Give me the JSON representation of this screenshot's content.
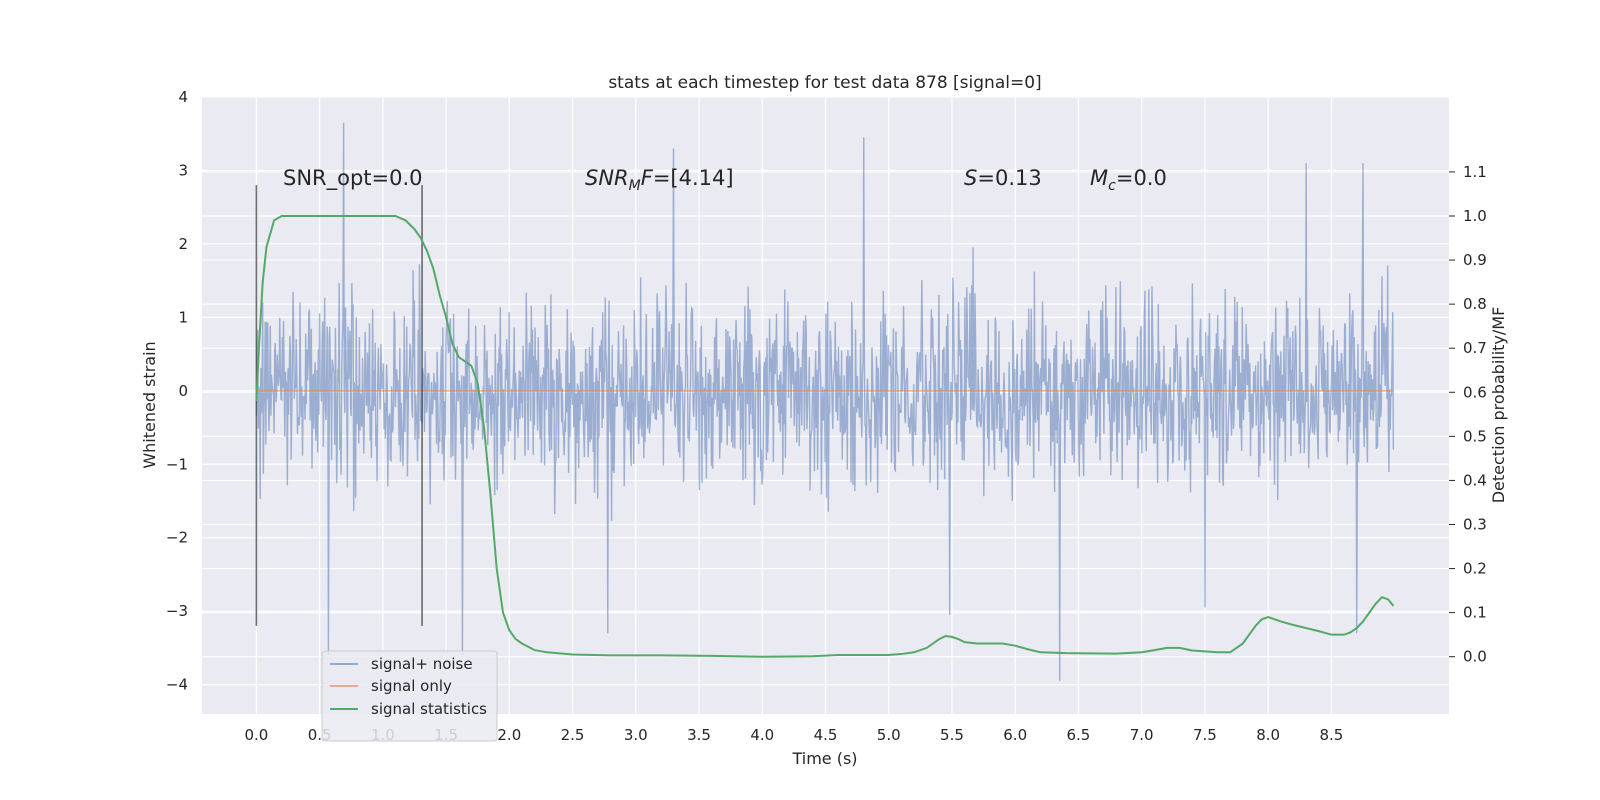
{
  "chart_data": {
    "type": "line",
    "title": "stats at each timestep for test data 878 [signal=0]",
    "xlabel": "Time (s)",
    "ylabel": "Whitened strain",
    "y2label": "Detection probability/MF",
    "xlim": [
      -0.43,
      9.43
    ],
    "ylim": [
      -4.4,
      4.0
    ],
    "y2lim": [
      -0.13,
      1.27
    ],
    "grid": true,
    "legend_position": "lower-left",
    "x_ticks": [
      "0.0",
      "0.5",
      "1.0",
      "1.5",
      "2.0",
      "2.5",
      "3.0",
      "3.5",
      "4.0",
      "4.5",
      "5.0",
      "5.5",
      "6.0",
      "6.5",
      "7.0",
      "7.5",
      "8.0",
      "8.5"
    ],
    "y_ticks": [
      "4",
      "3",
      "2",
      "1",
      "0",
      "−1",
      "−2",
      "−3",
      "−4"
    ],
    "y2_ticks": [
      "1.1",
      "1.0",
      "0.9",
      "0.8",
      "0.7",
      "0.6",
      "0.5",
      "0.4",
      "0.3",
      "0.2",
      "0.1",
      "0.0"
    ],
    "annotations": [
      {
        "label": "SNR_opt=",
        "value": "0.0"
      },
      {
        "label": "SNR",
        "sub": "M",
        "mid": "F=",
        "value": "[4.14]"
      },
      {
        "label": "S",
        "mid": "=",
        "value": "0.13"
      },
      {
        "label": "M",
        "sub": "c",
        "mid": "=",
        "value": "0.0"
      }
    ],
    "vlines": [
      0.0,
      1.31
    ],
    "series": [
      {
        "name": "signal+ noise",
        "color": "#4c72b0",
        "x_range": [
          0.0,
          8.99
        ],
        "n_points": 1800,
        "envelope": {
          "typical_abs": 1.4,
          "max": 3.65,
          "min": -3.95
        },
        "peaks": [
          [
            0.69,
            3.65
          ],
          [
            4.8,
            3.45
          ],
          [
            3.3,
            3.3
          ],
          [
            8.3,
            3.1
          ],
          [
            8.75,
            3.1
          ],
          [
            6.35,
            -3.95
          ],
          [
            0.57,
            -3.6
          ],
          [
            1.63,
            -3.6
          ],
          [
            2.78,
            -3.3
          ],
          [
            8.7,
            -3.3
          ],
          [
            5.48,
            -3.05
          ],
          [
            7.5,
            -2.95
          ]
        ]
      },
      {
        "name": "signal only",
        "color": "#dd8452",
        "x": [
          0.0,
          8.99
        ],
        "y": [
          0.0,
          0.0
        ]
      },
      {
        "name": "signal statistics",
        "color": "#55a868",
        "axis": "right",
        "x": [
          0.0,
          0.02,
          0.05,
          0.08,
          0.14,
          0.2,
          0.3,
          0.5,
          0.7,
          0.9,
          1.1,
          1.18,
          1.25,
          1.3,
          1.35,
          1.4,
          1.45,
          1.5,
          1.55,
          1.6,
          1.65,
          1.7,
          1.75,
          1.8,
          1.85,
          1.9,
          1.95,
          2.0,
          2.05,
          2.1,
          2.2,
          2.3,
          2.5,
          2.8,
          3.2,
          3.6,
          4.0,
          4.4,
          4.6,
          4.8,
          5.0,
          5.1,
          5.2,
          5.3,
          5.4,
          5.45,
          5.5,
          5.55,
          5.6,
          5.7,
          5.8,
          5.9,
          6.0,
          6.1,
          6.2,
          6.4,
          6.8,
          7.0,
          7.1,
          7.2,
          7.3,
          7.4,
          7.6,
          7.7,
          7.8,
          7.85,
          7.9,
          7.95,
          8.0,
          8.1,
          8.2,
          8.3,
          8.4,
          8.5,
          8.6,
          8.65,
          8.7,
          8.75,
          8.8,
          8.85,
          8.9,
          8.95,
          8.99
        ],
        "y": [
          0.58,
          0.7,
          0.85,
          0.93,
          0.99,
          1.0,
          1.0,
          1.0,
          1.0,
          1.0,
          1.0,
          0.99,
          0.97,
          0.95,
          0.92,
          0.88,
          0.82,
          0.77,
          0.71,
          0.68,
          0.67,
          0.66,
          0.62,
          0.52,
          0.37,
          0.2,
          0.1,
          0.06,
          0.04,
          0.03,
          0.015,
          0.01,
          0.005,
          0.003,
          0.003,
          0.002,
          0.0,
          0.001,
          0.004,
          0.004,
          0.004,
          0.006,
          0.01,
          0.02,
          0.04,
          0.047,
          0.045,
          0.04,
          0.033,
          0.03,
          0.03,
          0.03,
          0.025,
          0.017,
          0.01,
          0.008,
          0.007,
          0.01,
          0.015,
          0.02,
          0.02,
          0.014,
          0.01,
          0.01,
          0.03,
          0.05,
          0.07,
          0.085,
          0.09,
          0.08,
          0.072,
          0.065,
          0.058,
          0.05,
          0.05,
          0.055,
          0.065,
          0.08,
          0.1,
          0.12,
          0.135,
          0.13,
          0.115
        ]
      }
    ]
  }
}
